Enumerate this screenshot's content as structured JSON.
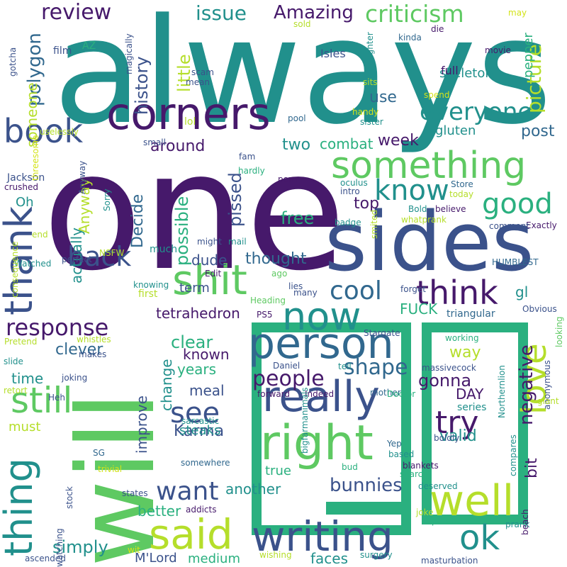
{
  "palette": {
    "dark_purple": "#46196b",
    "indigo": "#3b528b",
    "blue": "#31688e",
    "teal": "#21908c",
    "green": "#2ab07f",
    "light_green": "#5ec962",
    "lime": "#b5de2b",
    "yellow_green": "#d3e31a"
  },
  "words": [
    "always",
    "one",
    "will",
    "sides",
    "corners",
    "person",
    "really",
    "right",
    "writing",
    "said",
    "something",
    "shit",
    "now",
    "well",
    "thank",
    "thing",
    "book",
    "love",
    "think",
    "ok",
    "still",
    "know",
    "good",
    "cool",
    "everyone",
    "back",
    "want",
    "response",
    "see",
    "try",
    "criticism",
    "people",
    "shape",
    "review",
    "issue",
    "Amazing",
    "history",
    "picture",
    "little",
    "polygon",
    "use",
    "someone",
    "pepper",
    "skeleton",
    "gluten",
    "post",
    "around",
    "two",
    "combat",
    "week",
    "pissed",
    "possible",
    "free",
    "top",
    "Decide",
    "Anyway",
    "actually",
    "term",
    "dude",
    "thought",
    "tetrahedron",
    "FUCK",
    "gl",
    "clever",
    "clear",
    "known",
    "years",
    "meal",
    "gonna",
    "way",
    "DAY",
    "negative",
    "valid",
    "bit",
    "improve",
    "change",
    "Karma",
    "steaks",
    "simply",
    "another",
    "bunnies",
    "better",
    "medium",
    "faces",
    "M'Lord",
    "true",
    "series",
    "time",
    "must",
    "Oh",
    "Jackson",
    "crushed",
    "full",
    "Isles",
    "film",
    "AZ",
    "magically",
    "Clearly",
    "gotcha",
    "scam",
    "mean",
    "threesome",
    "small",
    "fam",
    "lol",
    "hardly",
    "uselessly",
    "porn",
    "oculus",
    "intro",
    "Store",
    "today",
    "Sorry",
    "mail",
    "end",
    "perfect",
    "NSFW",
    "Watched",
    "consequence",
    "much",
    "knowing",
    "first",
    "many",
    "PS5",
    "lies",
    "Heading",
    "forget",
    "whistles",
    "Pretend",
    "makes",
    "working",
    "massivecock",
    "Northernlion",
    "Daniel",
    "tell",
    "Heh",
    "joking",
    "forward",
    "Indeed",
    "mother",
    "Doctor",
    "sarcastic",
    "Stargate",
    "Obvious",
    "triangular",
    "retort",
    "slide",
    "trivial",
    "SG",
    "somewhere",
    "bigfarmanimals",
    "Yep",
    "based",
    "boldly",
    "blankets",
    "search",
    "bud",
    "stock",
    "states",
    "addicts",
    "deserved",
    "joke",
    "products",
    "prank",
    "beach",
    "compares",
    "anonymous",
    "looking",
    "giant",
    "Exactly",
    "comment",
    "whatprank",
    "Bold",
    "believe",
    "smited",
    "badge",
    "handy",
    "pool",
    "sister",
    "spend",
    "daughter",
    "sits",
    "kinda",
    "die",
    "movie",
    "may",
    "sold",
    "watching",
    "ascended",
    "wit",
    "wishing",
    "surgery",
    "masturbation",
    "HUMBLEST",
    "Edit",
    "ago",
    "might",
    "Anyway"
  ]
}
